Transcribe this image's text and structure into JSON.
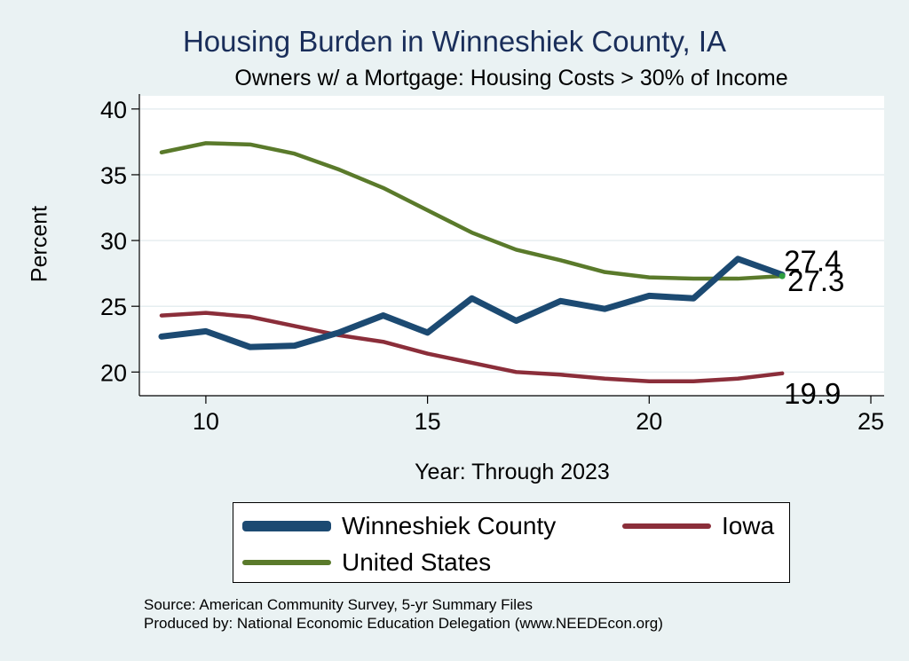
{
  "chart_data": {
    "type": "line",
    "title": "Housing Burden in Winneshiek County, IA",
    "subtitle": "Owners w/ a Mortgage: Housing Costs > 30% of Income",
    "xlabel": "Year: Through 2023",
    "ylabel": "Percent",
    "xlim": [
      8.5,
      25.3
    ],
    "ylim": [
      18.2,
      41
    ],
    "xticks": [
      10,
      15,
      20,
      25
    ],
    "yticks": [
      20,
      25,
      30,
      35,
      40
    ],
    "grid": true,
    "legend_position": "bottom",
    "series": [
      {
        "name": "Winneshiek County",
        "color": "#1c4a72",
        "x": [
          9,
          10,
          11,
          12,
          13,
          14,
          15,
          16,
          17,
          18,
          19,
          20,
          21,
          22,
          23
        ],
        "values": [
          22.7,
          23.1,
          21.9,
          22.0,
          23.0,
          24.3,
          23.0,
          25.6,
          23.9,
          25.4,
          24.8,
          25.8,
          25.6,
          28.6,
          27.4
        ],
        "end_label": "27.4"
      },
      {
        "name": "Iowa",
        "color": "#8b2e3a",
        "x": [
          9,
          10,
          11,
          12,
          13,
          14,
          15,
          16,
          17,
          18,
          19,
          20,
          21,
          22,
          23
        ],
        "values": [
          24.3,
          24.5,
          24.2,
          23.5,
          22.8,
          22.3,
          21.4,
          20.7,
          20.0,
          19.8,
          19.5,
          19.3,
          19.3,
          19.5,
          19.9
        ],
        "end_label": "19.9"
      },
      {
        "name": "United States",
        "color": "#5a7a2b",
        "x": [
          9,
          10,
          11,
          12,
          13,
          14,
          15,
          16,
          17,
          18,
          19,
          20,
          21,
          22,
          23
        ],
        "values": [
          36.7,
          37.4,
          37.3,
          36.6,
          35.4,
          34.0,
          32.3,
          30.6,
          29.3,
          28.5,
          27.6,
          27.2,
          27.1,
          27.1,
          27.3
        ],
        "end_label": "27.3"
      }
    ]
  },
  "legend": {
    "items": [
      {
        "label": "Winneshiek County",
        "color": "#1c4a72"
      },
      {
        "label": "Iowa",
        "color": "#8b2e3a"
      },
      {
        "label": "United States",
        "color": "#5a7a2b"
      }
    ]
  },
  "source": {
    "line1": "Source: American Community Survey, 5-yr Summary Files",
    "line2": "Produced by: National Economic Education Delegation (www.NEEDEcon.org)"
  }
}
